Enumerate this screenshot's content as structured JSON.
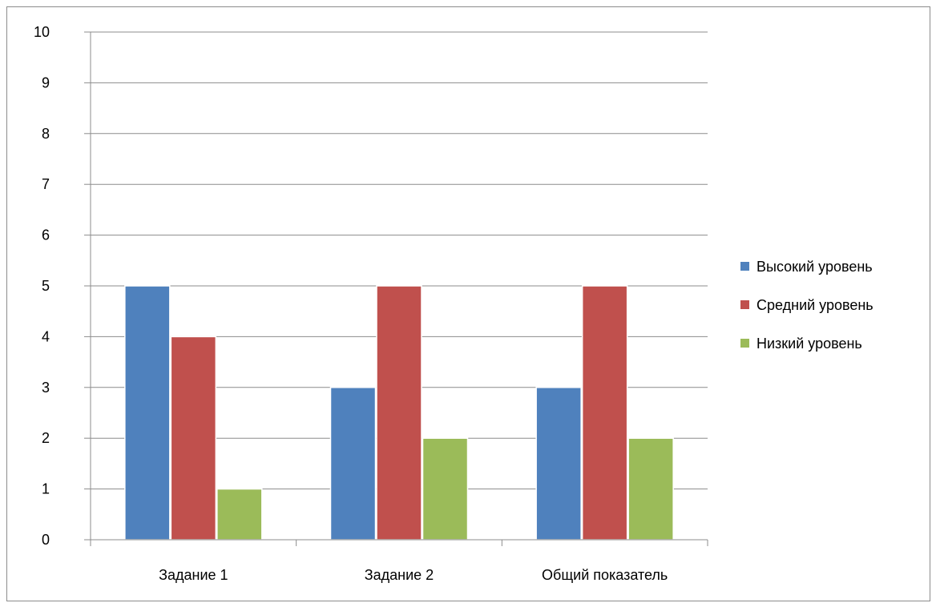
{
  "chart_data": {
    "type": "bar",
    "categories": [
      "Задание 1",
      "Задание 2",
      "Общий показатель"
    ],
    "series": [
      {
        "name": "Высокий уровень",
        "values": [
          5,
          3,
          3
        ],
        "color": "#4f81bd"
      },
      {
        "name": "Средний уровень",
        "values": [
          4,
          5,
          5
        ],
        "color": "#c0504d"
      },
      {
        "name": "Низкий уровень",
        "values": [
          1,
          2,
          2
        ],
        "color": "#9bbb59"
      }
    ],
    "ylim": [
      0,
      10
    ],
    "yticks": [
      0,
      1,
      2,
      3,
      4,
      5,
      6,
      7,
      8,
      9,
      10
    ],
    "grid": true,
    "legend_position": "right",
    "title": "",
    "xlabel": "",
    "ylabel": ""
  }
}
